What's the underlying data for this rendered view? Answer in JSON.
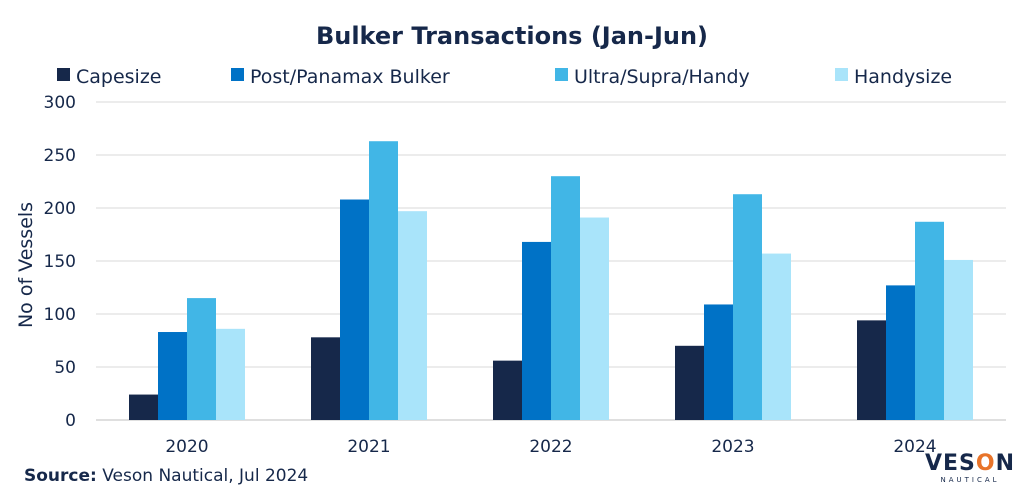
{
  "chart_data": {
    "type": "bar",
    "title": "Bulker Transactions (Jan-Jun)",
    "ylabel": "No of Vessels",
    "xlabel": "",
    "ylim": [
      0,
      300
    ],
    "yticks": [
      0,
      50,
      100,
      150,
      200,
      250,
      300
    ],
    "grid": true,
    "legend_position": "top",
    "categories": [
      "2020",
      "2021",
      "2022",
      "2023",
      "2024"
    ],
    "series": [
      {
        "name": "Capesize",
        "color": "#16284a",
        "values": [
          24,
          78,
          56,
          70,
          94
        ]
      },
      {
        "name": "Post/Panamax Bulker",
        "color": "#0072c6",
        "values": [
          83,
          208,
          168,
          109,
          127
        ]
      },
      {
        "name": "Ultra/Supra/Handy",
        "color": "#41b6e6",
        "values": [
          115,
          263,
          230,
          213,
          187
        ]
      },
      {
        "name": "Handysize",
        "color": "#a9e4fa",
        "values": [
          86,
          197,
          191,
          157,
          151
        ]
      }
    ]
  },
  "source": {
    "label": "Source:",
    "text": "Veson Nautical, Jul 2024"
  },
  "logo": {
    "main_pre": "VES",
    "main_o": "O",
    "main_post": "N",
    "sub": "NAUTICAL"
  }
}
